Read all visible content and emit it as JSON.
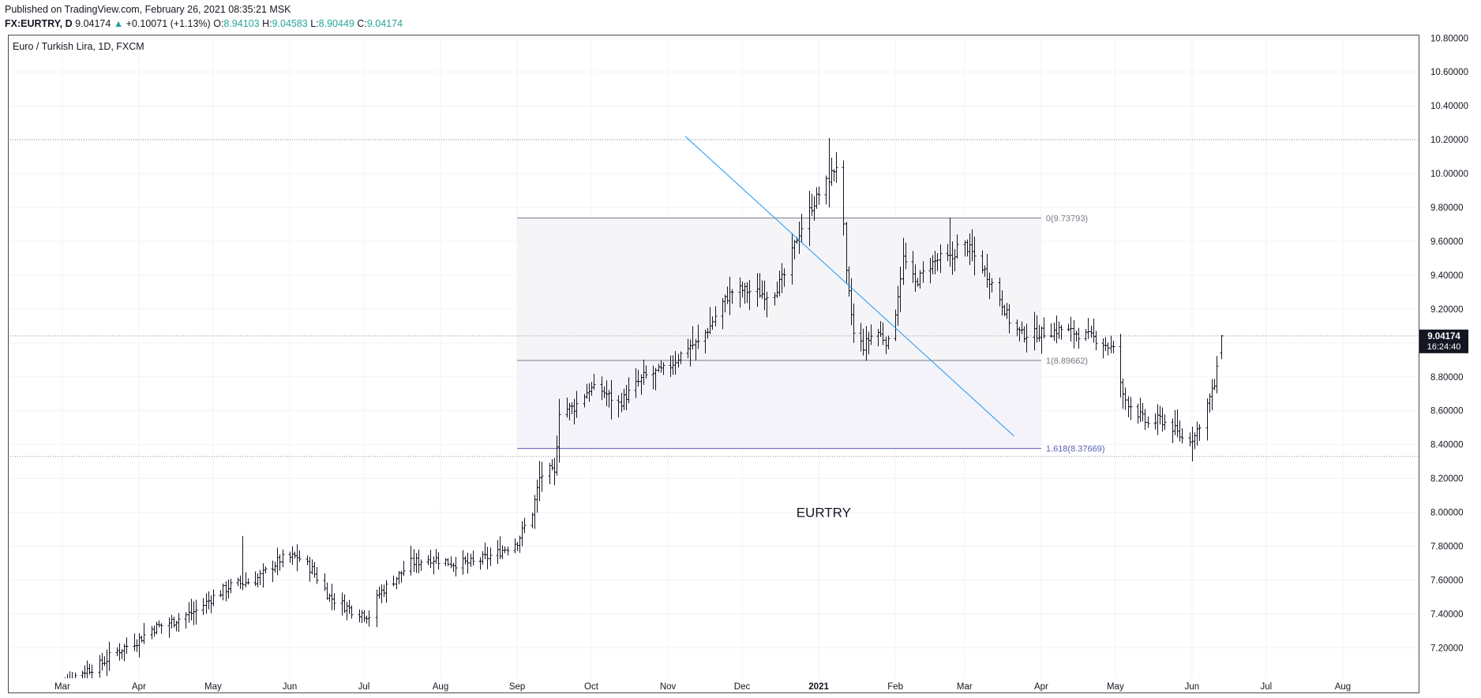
{
  "header": {
    "published": "Published on TradingView.com, February 26, 2021 08:35:21 MSK",
    "symbol": "FX:EURTRY, D",
    "last": "9.04174",
    "change": "+0.10071 (+1.13%)",
    "o_label": "O:",
    "o_val": "8.94103",
    "h_label": "H:",
    "h_val": "9.04583",
    "l_label": "L:",
    "l_val": "8.90449",
    "c_label": "C:",
    "c_val": "9.04174"
  },
  "colors": {
    "bar": "#131722",
    "trendline": "#2196f3",
    "fib_line_1": "#787b86",
    "fib_line_2": "#5b5fb3",
    "fib_fill": "#f0f0f5",
    "up": "#26a69a",
    "price_badge": "#131722"
  },
  "chart_data": {
    "type": "ohlc",
    "title": "Euro / Turkish Lira, 1D, FXCM",
    "annotation": "EURTRY",
    "ylim": [
      7.02,
      10.82
    ],
    "y_ticks": [
      10.8,
      10.6,
      10.4,
      10.2,
      10.0,
      9.8,
      9.6,
      9.4,
      9.2,
      9.0,
      8.8,
      8.6,
      8.4,
      8.2,
      8.0,
      7.8,
      7.6,
      7.4,
      7.2
    ],
    "y_tick_labels": [
      "10.80000",
      "10.60000",
      "10.40000",
      "10.20000",
      "10.00000",
      "9.80000",
      "9.60000",
      "9.40000",
      "9.20000",
      "9.00000",
      "8.80000",
      "8.60000",
      "8.40000",
      "8.20000",
      "8.00000",
      "7.80000",
      "7.60000",
      "7.40000",
      "7.20000"
    ],
    "x_tick_labels": [
      "Mar",
      "Apr",
      "May",
      "Jun",
      "Jul",
      "Aug",
      "Sep",
      "Oct",
      "Nov",
      "Dec",
      "2021",
      "Feb",
      "Mar",
      "Apr",
      "May",
      "Jun",
      "Jul",
      "Aug"
    ],
    "x_tick_dates": [
      "2020-03-01",
      "2020-04-01",
      "2020-05-01",
      "2020-06-01",
      "2020-07-01",
      "2020-08-01",
      "2020-09-01",
      "2020-10-01",
      "2020-11-01",
      "2020-12-01",
      "2021-01-01",
      "2021-02-01",
      "2021-03-01",
      "2021-04-01",
      "2021-05-01",
      "2021-06-01",
      "2021-07-01",
      "2021-08-01"
    ],
    "x_range": [
      "2020-02-08",
      "2021-09-01"
    ],
    "bold_tick_labels": [
      "2021"
    ],
    "keypoints": [
      [
        "2020-02-24",
        6.94
      ],
      [
        "2020-03-09",
        7.06
      ],
      [
        "2020-03-16",
        7.1
      ],
      [
        "2020-03-23",
        7.18
      ],
      [
        "2020-04-01",
        7.25
      ],
      [
        "2020-04-06",
        7.31
      ],
      [
        "2020-04-15",
        7.36
      ],
      [
        "2020-04-24",
        7.42
      ],
      [
        "2020-05-01",
        7.5
      ],
      [
        "2020-05-07",
        7.56
      ],
      [
        "2020-05-12",
        7.58
      ],
      [
        "2020-05-18",
        7.6
      ],
      [
        "2020-05-28",
        7.72
      ],
      [
        "2020-06-04",
        7.74
      ],
      [
        "2020-06-10",
        7.66
      ],
      [
        "2020-06-17",
        7.5
      ],
      [
        "2020-06-25",
        7.43
      ],
      [
        "2020-07-03",
        7.39
      ],
      [
        "2020-07-07",
        7.52
      ],
      [
        "2020-07-13",
        7.6
      ],
      [
        "2020-07-20",
        7.7
      ],
      [
        "2020-07-28",
        7.73
      ],
      [
        "2020-08-06",
        7.7
      ],
      [
        "2020-08-14",
        7.7
      ],
      [
        "2020-08-24",
        7.76
      ],
      [
        "2020-09-01",
        7.83
      ],
      [
        "2020-09-07",
        8.0
      ],
      [
        "2020-09-10",
        8.2
      ],
      [
        "2020-09-13",
        8.26
      ],
      [
        "2020-09-16",
        8.22
      ],
      [
        "2020-09-18",
        8.6
      ],
      [
        "2020-09-24",
        8.62
      ],
      [
        "2020-09-30",
        8.73
      ],
      [
        "2020-10-05",
        8.72
      ],
      [
        "2020-10-12",
        8.64
      ],
      [
        "2020-10-22",
        8.8
      ],
      [
        "2020-11-01",
        8.85
      ],
      [
        "2020-11-09",
        8.98
      ],
      [
        "2020-11-13",
        9.0
      ],
      [
        "2020-11-18",
        9.1
      ],
      [
        "2020-11-22",
        9.22
      ],
      [
        "2020-11-28",
        9.32
      ],
      [
        "2020-12-06",
        9.3
      ],
      [
        "2020-12-13",
        9.28
      ],
      [
        "2020-12-18",
        9.4
      ],
      [
        "2020-12-23",
        9.62
      ],
      [
        "2020-12-28",
        9.78
      ],
      [
        "2021-01-01",
        9.88
      ],
      [
        "2021-01-05",
        9.97
      ],
      [
        "2021-01-08",
        10.05
      ],
      [
        "2021-01-10",
        9.95
      ],
      [
        "2021-01-12",
        9.4
      ],
      [
        "2021-01-15",
        9.05
      ],
      [
        "2021-01-19",
        8.98
      ],
      [
        "2021-01-24",
        9.08
      ],
      [
        "2021-01-30",
        8.98
      ],
      [
        "2021-02-04",
        9.5
      ],
      [
        "2021-02-09",
        9.35
      ],
      [
        "2021-02-14",
        9.45
      ],
      [
        "2021-02-19",
        9.5
      ],
      [
        "2021-02-24",
        9.5
      ],
      [
        "2021-02-27",
        9.6
      ],
      [
        "2021-03-03",
        9.55
      ],
      [
        "2021-03-08",
        9.45
      ],
      [
        "2021-03-14",
        9.3
      ],
      [
        "2021-03-20",
        9.1
      ],
      [
        "2021-03-24",
        9.05
      ],
      [
        "2021-04-02",
        9.06
      ],
      [
        "2021-04-09",
        9.08
      ],
      [
        "2021-04-17",
        9.05
      ],
      [
        "2021-04-24",
        9.02
      ],
      [
        "2021-05-01",
        8.95
      ],
      [
        "2021-05-04",
        8.68
      ],
      [
        "2021-05-09",
        8.6
      ],
      [
        "2021-05-14",
        8.52
      ],
      [
        "2021-05-19",
        8.55
      ],
      [
        "2021-05-24",
        8.5
      ],
      [
        "2021-05-29",
        8.42
      ],
      [
        "2021-06-02",
        8.45
      ],
      [
        "2021-06-06",
        8.6
      ],
      [
        "2021-06-10",
        8.75
      ],
      [
        "2021-06-13",
        9.0
      ]
    ],
    "spikes": [
      [
        "2020-05-13",
        7.86,
        7.58
      ],
      [
        "2021-01-05",
        10.21,
        9.8
      ],
      [
        "2021-02-23",
        9.74,
        9.45
      ],
      [
        "2021-05-29",
        8.5,
        8.37
      ]
    ],
    "last_bar": {
      "open": 8.94103,
      "high": 9.04583,
      "low": 8.90449,
      "close": 9.04174
    },
    "fib_levels": [
      {
        "ratio": "0",
        "label": "0(9.73793)",
        "value": 9.73793
      },
      {
        "ratio": "1",
        "label": "1(8.89662)",
        "value": 8.89662
      },
      {
        "ratio": "1.618",
        "label": "1.618(8.37669)",
        "value": 8.37669
      }
    ],
    "fib_range": [
      "2020-09-01",
      "2021-04-01"
    ],
    "trendline": [
      [
        "2020-11-08",
        10.22
      ],
      [
        "2021-03-21",
        8.45
      ]
    ],
    "horizontal_lines": [
      10.2,
      9.04174,
      8.33
    ],
    "price_badge": {
      "value": "9.04174",
      "countdown": "16:24:40"
    },
    "grid": true
  }
}
